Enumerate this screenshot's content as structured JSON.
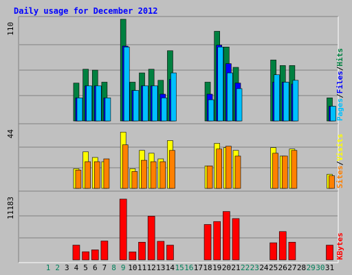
{
  "chart_data": {
    "type": "bar",
    "title": "Daily usage for December 2012",
    "days": [
      "1",
      "2",
      "3",
      "4",
      "5",
      "6",
      "7",
      "8",
      "9",
      "10",
      "11",
      "12",
      "13",
      "14",
      "15",
      "16",
      "17",
      "18",
      "19",
      "20",
      "21",
      "22",
      "23",
      "24",
      "25",
      "26",
      "27",
      "28",
      "29",
      "30",
      "31"
    ],
    "weekend_days": [
      "1",
      "2",
      "8",
      "9",
      "15",
      "16",
      "22",
      "23",
      "29",
      "30"
    ],
    "panels": [
      {
        "id": "hits-files-pages",
        "ymax_label": "110",
        "ymax": 110,
        "legend": [
          "Pages",
          "/",
          "Files",
          "/",
          "Hits"
        ],
        "legend_colors": [
          "#00c0ff",
          "#000000",
          "#0000ff",
          "#000000",
          "#008040"
        ],
        "series": [
          {
            "name": "Hits",
            "color": "#008040",
            "values": [
              0,
              0,
              0,
              41,
              56,
              55,
              42,
              0,
              110,
              42,
              52,
              56,
              44,
              76,
              0,
              0,
              0,
              42,
              97,
              80,
              58,
              0,
              0,
              0,
              66,
              60,
              60,
              0,
              0,
              0,
              25
            ]
          },
          {
            "name": "Files",
            "color": "#0000ff",
            "values": [
              0,
              0,
              0,
              25,
              38,
              38,
              25,
              0,
              81,
              33,
              38,
              38,
              29,
              45,
              0,
              0,
              0,
              29,
              82,
              62,
              41,
              0,
              0,
              0,
              42,
              42,
              40,
              0,
              0,
              0,
              16
            ]
          },
          {
            "name": "Pages",
            "color": "#00c0ff",
            "values": [
              0,
              0,
              0,
              25,
              38,
              38,
              25,
              0,
              80,
              33,
              38,
              38,
              25,
              52,
              0,
              0,
              0,
              23,
              80,
              52,
              35,
              0,
              0,
              0,
              50,
              42,
              44,
              0,
              0,
              0,
              16
            ]
          }
        ]
      },
      {
        "id": "visits-sites",
        "ymax_label": "44",
        "ymax": 44,
        "legend": [
          "Sites",
          "/",
          "Visits"
        ],
        "legend_colors": [
          "#ff8000",
          "#000000",
          "#ffff00"
        ],
        "series": [
          {
            "name": "Visits",
            "color": "#ffff00",
            "values": [
              0,
              0,
              0,
              14,
              26,
              22,
              19,
              0,
              40,
              14,
              27,
              25,
              21,
              34,
              0,
              0,
              0,
              16,
              32,
              29,
              27,
              0,
              0,
              0,
              29,
              23,
              28,
              0,
              0,
              0,
              10
            ]
          },
          {
            "name": "Sites",
            "color": "#ff8000",
            "values": [
              0,
              0,
              0,
              13,
              19,
              19,
              21,
              0,
              31,
              12,
              20,
              19,
              19,
              27,
              0,
              0,
              0,
              16,
              28,
              30,
              23,
              0,
              0,
              0,
              25,
              23,
              27,
              0,
              0,
              0,
              9
            ]
          }
        ]
      },
      {
        "id": "kbytes",
        "ymax_label": "11183",
        "ymax": 11183,
        "legend": [
          "KBytes"
        ],
        "legend_colors": [
          "#ff0000"
        ],
        "series": [
          {
            "name": "KBytes",
            "color": "#ff0000",
            "values": [
              0,
              0,
              0,
              2500,
              1380,
              1700,
              3200,
              0,
              10300,
              1350,
              3000,
              7400,
              3150,
              2500,
              0,
              0,
              0,
              6000,
              6500,
              8200,
              7000,
              0,
              0,
              0,
              2900,
              4800,
              3000,
              0,
              0,
              0,
              2500
            ]
          }
        ]
      }
    ]
  }
}
